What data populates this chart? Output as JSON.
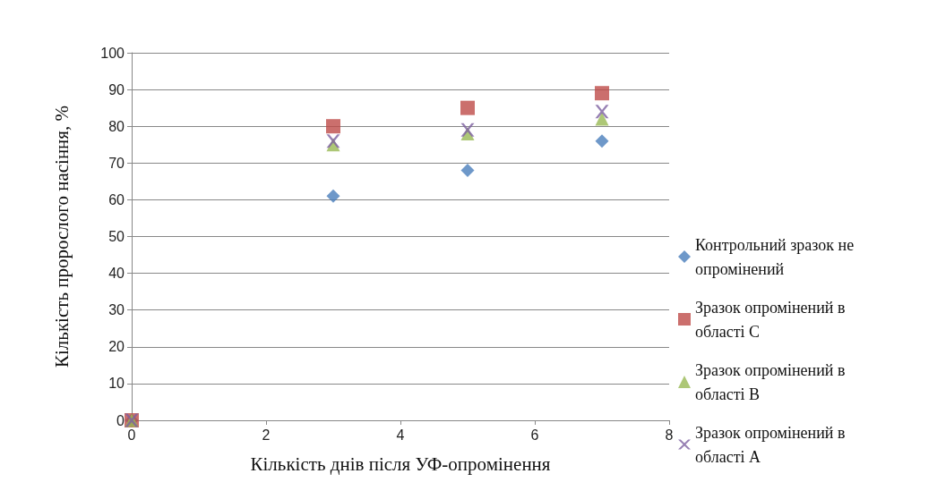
{
  "chart_data": {
    "type": "scatter",
    "xlabel": "Кількість днів після УФ-опромінення",
    "ylabel": "Кількість пророслого насіння, %",
    "x": [
      0,
      3,
      5,
      7
    ],
    "series": [
      {
        "name": "Контрольний зразок не опромінений",
        "color": "#4a7ebb",
        "marker": "diamond",
        "values": [
          0,
          61,
          68,
          76
        ]
      },
      {
        "name": "Зразок опромінений в області С",
        "color": "#be4b48",
        "marker": "square",
        "values": [
          0,
          80,
          85,
          89
        ]
      },
      {
        "name": "Зразок опромінений в області В",
        "color": "#98b954",
        "marker": "triangle",
        "values": [
          0,
          75,
          78,
          82
        ]
      },
      {
        "name": "Зразок опромінений в області А",
        "color": "#7d60a0",
        "marker": "cross",
        "values": [
          0,
          76,
          79,
          84
        ]
      }
    ],
    "xlim": [
      0,
      8
    ],
    "xticks": [
      0,
      2,
      4,
      6,
      8
    ],
    "ylim": [
      0,
      100
    ],
    "yticks": [
      0,
      10,
      20,
      30,
      40,
      50,
      60,
      70,
      80,
      90,
      100
    ],
    "grid": "y",
    "legend": "right"
  }
}
